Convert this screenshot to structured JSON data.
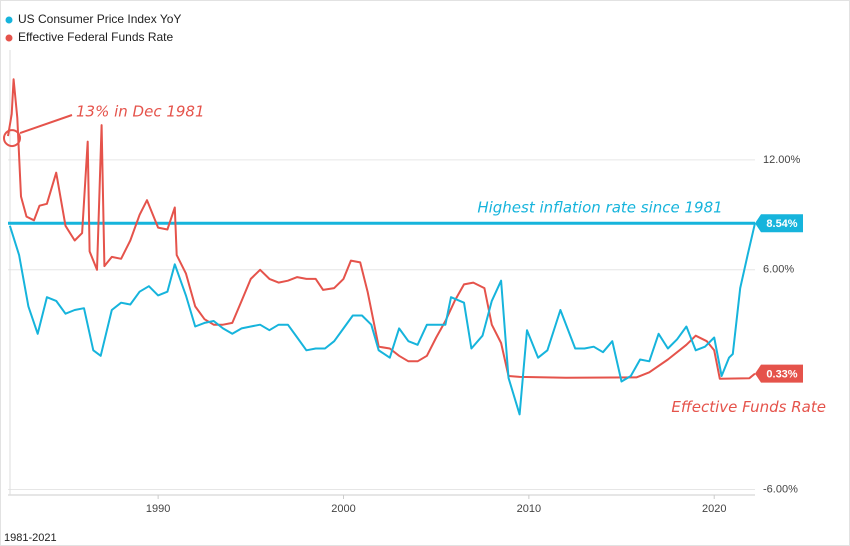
{
  "chart_data": {
    "type": "line",
    "footer": "1981-2021",
    "xlim": [
      1981.9,
      2022.2
    ],
    "xticks": [
      1990,
      2000,
      2010,
      2020
    ],
    "ylim": [
      -6.3,
      18
    ],
    "yticks": [
      {
        "value": 12,
        "label": "12.00%"
      },
      {
        "value": 6,
        "label": "6.00%"
      },
      {
        "value": -6,
        "label": "-6.00%"
      }
    ],
    "grid": true,
    "legend": "top-left",
    "reference_line": {
      "value": 8.54,
      "label": "Highest inflation rate since 1981",
      "color": "#16b4dc"
    },
    "annotations": [
      {
        "text": "13% in Dec 1981",
        "series": 1,
        "point": 0
      },
      {
        "text": "Effective Funds Rate",
        "series": 1,
        "point": 66
      }
    ],
    "series": [
      {
        "name": "US Consumer Price Index YoY",
        "color": "#16b4dc",
        "end_label": "8.54%",
        "x": [
          1982.0,
          1982.5,
          1983.0,
          1983.5,
          1984.0,
          1984.5,
          1985.0,
          1985.5,
          1986.0,
          1986.5,
          1986.9,
          1987.5,
          1988.0,
          1988.5,
          1989.0,
          1989.5,
          1990.0,
          1990.5,
          1990.9,
          1991.5,
          1992.0,
          1992.5,
          1993.0,
          1993.5,
          1994.0,
          1994.5,
          1995.0,
          1995.5,
          1996.0,
          1996.5,
          1997.0,
          1997.5,
          1998.0,
          1998.5,
          1999.0,
          1999.5,
          2000.0,
          2000.5,
          2001.0,
          2001.5,
          2001.9,
          2002.5,
          2003.0,
          2003.5,
          2004.0,
          2004.5,
          2005.0,
          2005.5,
          2005.8,
          2006.5,
          2006.9,
          2007.5,
          2008.0,
          2008.5,
          2008.9,
          2009.5,
          2009.9,
          2010.5,
          2011.0,
          2011.7,
          2012.5,
          2013.0,
          2013.5,
          2014.0,
          2014.5,
          2015.0,
          2015.5,
          2016.0,
          2016.5,
          2017.0,
          2017.5,
          2018.0,
          2018.5,
          2019.0,
          2019.5,
          2020.0,
          2020.4,
          2020.8,
          2021.0,
          2021.4,
          2021.8,
          2022.2
        ],
        "values": [
          8.4,
          6.8,
          4.0,
          2.5,
          4.5,
          4.3,
          3.6,
          3.8,
          3.9,
          1.6,
          1.3,
          3.8,
          4.2,
          4.1,
          4.8,
          5.1,
          4.6,
          4.8,
          6.3,
          4.6,
          2.9,
          3.1,
          3.2,
          2.8,
          2.5,
          2.8,
          2.9,
          3.0,
          2.7,
          3.0,
          3.0,
          2.3,
          1.6,
          1.7,
          1.7,
          2.1,
          2.8,
          3.5,
          3.5,
          3.0,
          1.6,
          1.2,
          2.8,
          2.1,
          1.9,
          3.0,
          3.0,
          3.0,
          4.5,
          4.2,
          1.7,
          2.4,
          4.3,
          5.4,
          0.1,
          -1.9,
          2.7,
          1.2,
          1.6,
          3.8,
          1.7,
          1.7,
          1.8,
          1.5,
          2.1,
          -0.1,
          0.2,
          1.1,
          1.0,
          2.5,
          1.7,
          2.2,
          2.9,
          1.6,
          1.8,
          2.3,
          0.2,
          1.2,
          1.4,
          5.0,
          6.8,
          8.54
        ]
      },
      {
        "name": "Effective Federal Funds Rate",
        "color": "#e5534b",
        "end_label": "0.33%",
        "x": [
          1981.9,
          1982.1,
          1982.2,
          1982.4,
          1982.6,
          1982.9,
          1983.3,
          1983.6,
          1984.0,
          1984.5,
          1985.0,
          1985.5,
          1985.9,
          1986.2,
          1986.3,
          1986.7,
          1986.95,
          1987.1,
          1987.5,
          1988.0,
          1988.5,
          1989.0,
          1989.4,
          1990.0,
          1990.5,
          1990.9,
          1991.0,
          1991.5,
          1992.0,
          1992.5,
          1993.0,
          1993.5,
          1994.0,
          1994.5,
          1995.0,
          1995.5,
          1996.0,
          1996.5,
          1997.0,
          1997.5,
          1998.0,
          1998.5,
          1998.9,
          1999.5,
          2000.0,
          2000.4,
          2000.9,
          2001.3,
          2001.9,
          2002.5,
          2003.0,
          2003.5,
          2004.0,
          2004.5,
          2005.0,
          2005.5,
          2006.0,
          2006.5,
          2007.0,
          2007.6,
          2008.0,
          2008.5,
          2008.9,
          2009.5,
          2012.0,
          2015.8,
          2016.5,
          2017.5,
          2018.5,
          2019.0,
          2019.6,
          2020.0,
          2020.3,
          2021.9,
          2022.2
        ],
        "values": [
          13.3,
          14.5,
          16.4,
          14.3,
          10.0,
          8.9,
          8.7,
          9.5,
          9.6,
          11.3,
          8.4,
          7.6,
          8.0,
          13.0,
          7.0,
          6.0,
          13.9,
          6.2,
          6.7,
          6.6,
          7.6,
          9.0,
          9.8,
          8.3,
          8.2,
          9.4,
          6.8,
          5.8,
          4.0,
          3.3,
          3.0,
          3.0,
          3.1,
          4.3,
          5.5,
          6.0,
          5.5,
          5.3,
          5.4,
          5.6,
          5.5,
          5.5,
          4.9,
          5.0,
          5.5,
          6.5,
          6.4,
          4.8,
          1.8,
          1.7,
          1.3,
          1.0,
          1.0,
          1.3,
          2.3,
          3.2,
          4.3,
          5.2,
          5.3,
          5.0,
          3.0,
          2.0,
          0.2,
          0.15,
          0.1,
          0.12,
          0.4,
          1.1,
          1.9,
          2.4,
          2.1,
          1.6,
          0.05,
          0.08,
          0.33
        ]
      }
    ]
  }
}
